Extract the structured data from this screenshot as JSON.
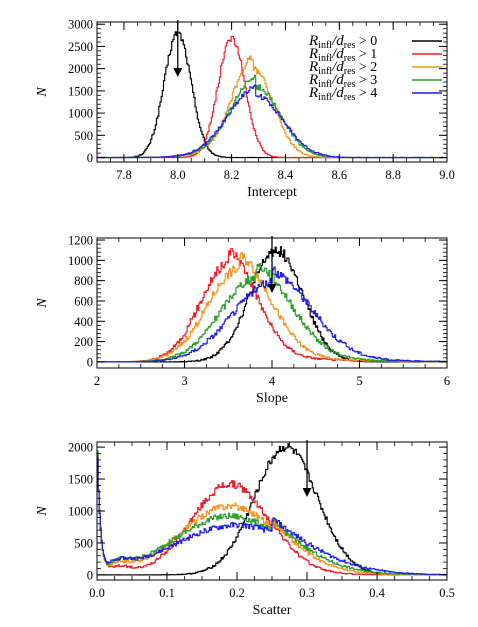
{
  "chart_data": [
    {
      "type": "histogram",
      "xlabel": "Intercept",
      "ylabel": "N",
      "xlim": [
        7.7,
        9.0
      ],
      "ylim": [
        -100,
        3050
      ],
      "xticks": [
        "7.8",
        "8.0",
        "8.2",
        "8.4",
        "8.6",
        "8.8",
        "9.0"
      ],
      "xtick_values": [
        7.8,
        8.0,
        8.2,
        8.4,
        8.6,
        8.8,
        9.0
      ],
      "yticks": [
        "0",
        "500",
        "1000",
        "1500",
        "2000",
        "2500",
        "3000"
      ],
      "ytick_values": [
        0,
        500,
        1000,
        1500,
        2000,
        2500,
        3000
      ],
      "arrow_at": 8.0,
      "legend": {
        "position": "top-right",
        "entries": [
          {
            "var": "R",
            "var_sub": "infl",
            "div": "d",
            "div_sub": "res",
            "cmp": " > 0",
            "color": "#000000"
          },
          {
            "var": "R",
            "var_sub": "infl",
            "div": "d",
            "div_sub": "res",
            "cmp": " > 1",
            "color": "#ee1c25"
          },
          {
            "var": "R",
            "var_sub": "infl",
            "div": "d",
            "div_sub": "res",
            "cmp": " > 2",
            "color": "#f7931e"
          },
          {
            "var": "R",
            "var_sub": "infl",
            "div": "d",
            "div_sub": "res",
            "cmp": " > 3",
            "color": "#2aa02a"
          },
          {
            "var": "R",
            "var_sub": "infl",
            "div": "d",
            "div_sub": "res",
            "cmp": " > 4",
            "color": "#1f1fe6"
          }
        ]
      },
      "series": [
        {
          "color": "#000000",
          "peak_x": 8.0,
          "peak_y": 2800,
          "width": 0.05
        },
        {
          "color": "#ee1c25",
          "peak_x": 8.2,
          "peak_y": 2700,
          "width": 0.05
        },
        {
          "color": "#f7931e",
          "peak_x": 8.28,
          "peak_y": 2000,
          "width": 0.075
        },
        {
          "color": "#2aa02a",
          "peak_x": 8.29,
          "peak_y": 1600,
          "width": 0.09
        },
        {
          "color": "#1f1fe6",
          "peak_x": 8.29,
          "peak_y": 1400,
          "width": 0.1
        }
      ]
    },
    {
      "type": "histogram",
      "xlabel": "Slope",
      "ylabel": "N",
      "xlim": [
        2,
        6
      ],
      "ylim": [
        -60,
        1220
      ],
      "xticks": [
        "2",
        "3",
        "4",
        "5",
        "6"
      ],
      "xtick_values": [
        2,
        3,
        4,
        5,
        6
      ],
      "yticks": [
        "0",
        "200",
        "400",
        "600",
        "800",
        "1000",
        "1200"
      ],
      "ytick_values": [
        0,
        200,
        400,
        600,
        800,
        1000,
        1200
      ],
      "arrow_at": 4.0,
      "series": [
        {
          "color": "#000000",
          "peak_x": 4.05,
          "peak_y": 1100,
          "width": 0.3
        },
        {
          "color": "#ee1c25",
          "peak_x": 3.5,
          "peak_y": 960,
          "width": 0.32
        },
        {
          "color": "#f7931e",
          "peak_x": 3.62,
          "peak_y": 910,
          "width": 0.36
        },
        {
          "color": "#2aa02a",
          "peak_x": 3.82,
          "peak_y": 830,
          "width": 0.4
        },
        {
          "color": "#1f1fe6",
          "peak_x": 4.0,
          "peak_y": 780,
          "width": 0.45
        }
      ]
    },
    {
      "type": "histogram",
      "xlabel": "Scatter",
      "ylabel": "N",
      "xlim": [
        0.0,
        0.5
      ],
      "ylim": [
        -80,
        2080
      ],
      "xticks": [
        "0.0",
        "0.1",
        "0.2",
        "0.3",
        "0.4",
        "0.5"
      ],
      "xtick_values": [
        0.0,
        0.1,
        0.2,
        0.3,
        0.4,
        0.5
      ],
      "yticks": [
        "0",
        "500",
        "1000",
        "1500",
        "2000"
      ],
      "ytick_values": [
        0,
        500,
        1000,
        1500,
        2000
      ],
      "arrow_at": 0.3,
      "series": [
        {
          "color": "#000000",
          "peak_x": 0.27,
          "peak_y": 2000,
          "width": 0.045
        },
        {
          "color": "#ee1c25",
          "peak_x": 0.19,
          "peak_y": 1420,
          "width": 0.055
        },
        {
          "color": "#f7931e",
          "peak_x": 0.19,
          "peak_y": 1080,
          "width": 0.07
        },
        {
          "color": "#2aa02a",
          "peak_x": 0.19,
          "peak_y": 920,
          "width": 0.08
        },
        {
          "color": "#1f1fe6",
          "peak_x": 0.2,
          "peak_y": 780,
          "width": 0.09
        }
      ]
    }
  ]
}
